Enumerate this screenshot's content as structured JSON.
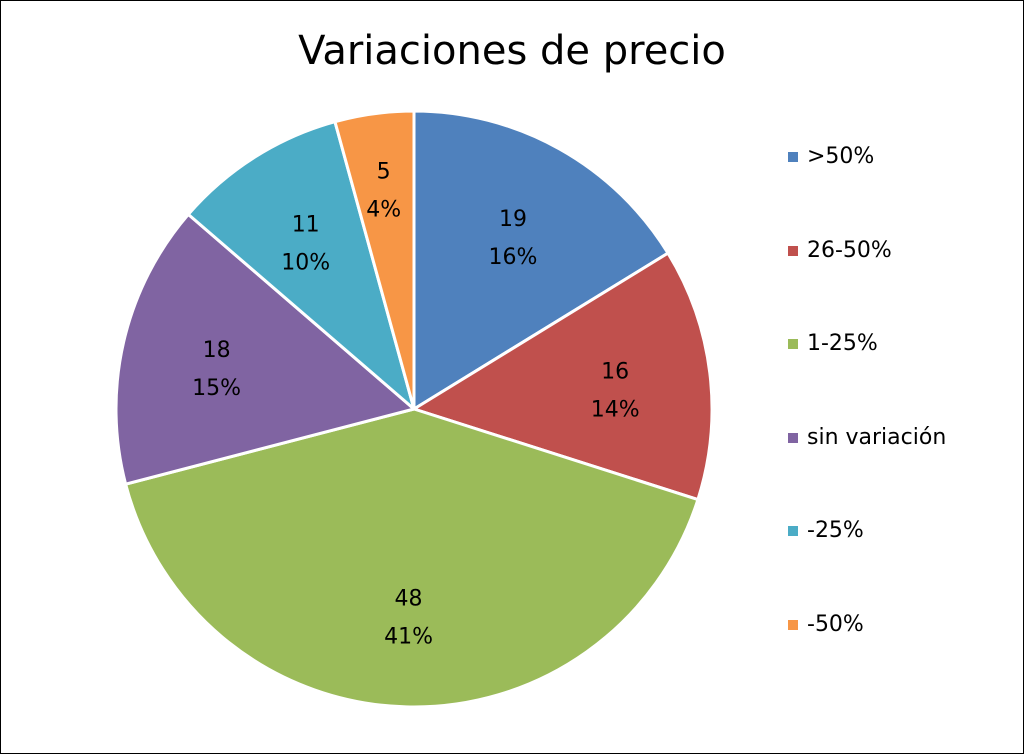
{
  "chart_data": {
    "type": "pie",
    "title": "Variaciones de precio",
    "legend_position": "right",
    "slices": [
      {
        "label": ">50%",
        "value": 19,
        "percent_label": "16%",
        "color": "#4F81BD"
      },
      {
        "label": "26-50%",
        "value": 16,
        "percent_label": "14%",
        "color": "#C0504D"
      },
      {
        "label": "1-25%",
        "value": 48,
        "percent_label": "41%",
        "color": "#9BBB59"
      },
      {
        "label": "sin variación",
        "value": 18,
        "percent_label": "15%",
        "color": "#8064A2"
      },
      {
        "label": "-25%",
        "value": 11,
        "percent_label": "10%",
        "color": "#4BACC6"
      },
      {
        "label": "-50%",
        "value": 5,
        "percent_label": "4%",
        "color": "#F79646"
      }
    ]
  }
}
